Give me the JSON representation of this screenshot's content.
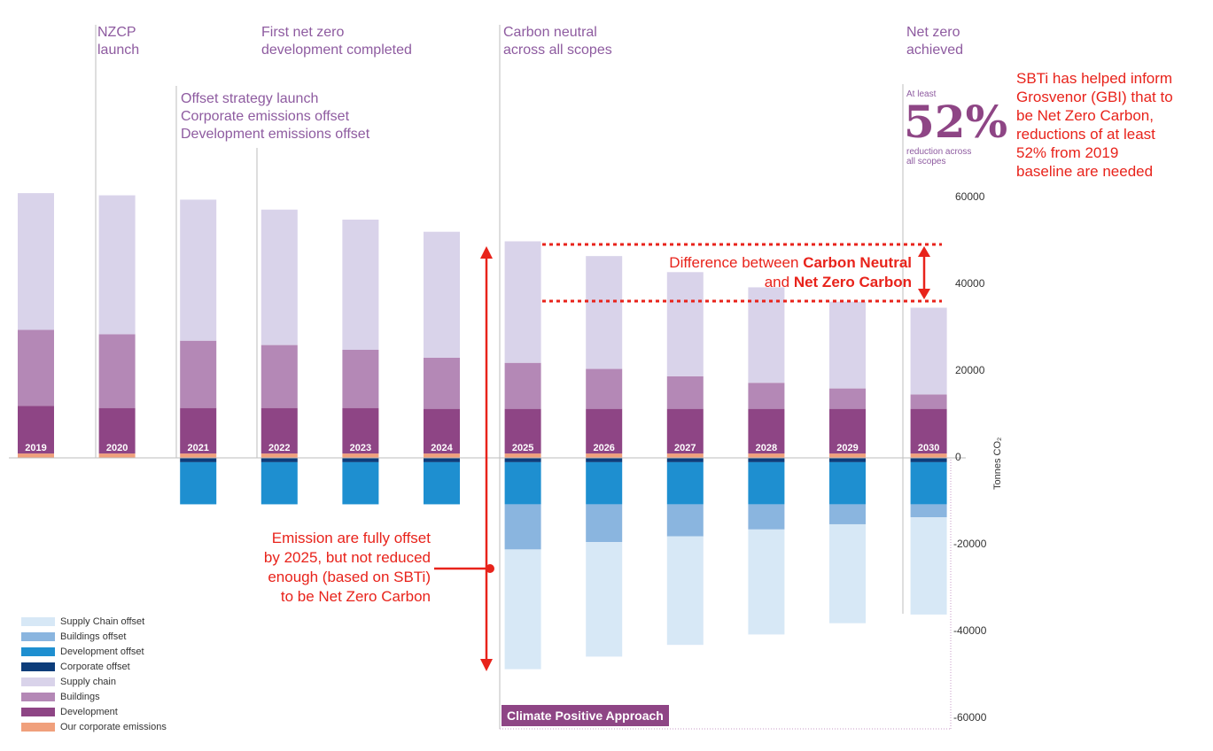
{
  "chart_data": {
    "type": "bar",
    "stacked": true,
    "categories": [
      "2019",
      "2020",
      "2021",
      "2022",
      "2023",
      "2024",
      "2025",
      "2026",
      "2027",
      "2028",
      "2029",
      "2030"
    ],
    "ylabel": "Tonnes CO₂",
    "ylim": [
      -60000,
      60000
    ],
    "yticks": [
      60000,
      40000,
      20000,
      0,
      -20000,
      -40000,
      -60000
    ],
    "series": [
      {
        "name": "Our corporate emissions",
        "color": "#f0a07c",
        "values": [
          1000,
          1000,
          1000,
          1000,
          1000,
          1000,
          1000,
          1000,
          1000,
          1000,
          1000,
          1000
        ]
      },
      {
        "name": "Development",
        "color": "#8e4585",
        "values": [
          11000,
          10500,
          10500,
          10500,
          10500,
          10300,
          10300,
          10300,
          10300,
          10300,
          10300,
          10300
        ]
      },
      {
        "name": "Buildings",
        "color": "#b488b6",
        "values": [
          17500,
          17000,
          15500,
          14500,
          13400,
          11800,
          10600,
          9200,
          7500,
          6000,
          4700,
          3300
        ]
      },
      {
        "name": "Supply chain",
        "color": "#d9d3ea",
        "values": [
          31500,
          32000,
          32500,
          31200,
          30000,
          29000,
          28000,
          26000,
          24000,
          22000,
          20000,
          20000
        ]
      },
      {
        "name": "Corporate offset",
        "color": "#0d3d7a",
        "values": [
          0,
          0,
          -1000,
          -1000,
          -1000,
          -1000,
          -1000,
          -1000,
          -1000,
          -1000,
          -1000,
          -1000
        ]
      },
      {
        "name": "Development offset",
        "color": "#1e8fd0",
        "values": [
          0,
          0,
          -9700,
          -9700,
          -9700,
          -9700,
          -9700,
          -9700,
          -9700,
          -9700,
          -9700,
          -9700
        ]
      },
      {
        "name": "Buildings offset",
        "color": "#8ab5df",
        "values": [
          0,
          0,
          0,
          0,
          0,
          0,
          -10400,
          -8700,
          -7400,
          -5800,
          -4600,
          -3000
        ]
      },
      {
        "name": "Supply Chain offset",
        "color": "#d7e8f6",
        "values": [
          0,
          0,
          0,
          0,
          0,
          0,
          -27600,
          -26400,
          -25000,
          -24200,
          -22800,
          -22400
        ]
      }
    ],
    "legend": [
      {
        "name": "Supply Chain offset",
        "color": "#d7e8f6"
      },
      {
        "name": "Buildings offset",
        "color": "#8ab5df"
      },
      {
        "name": "Development offset",
        "color": "#1e8fd0"
      },
      {
        "name": "Corporate offset",
        "color": "#0d3d7a"
      },
      {
        "name": "Supply chain",
        "color": "#d9d3ea"
      },
      {
        "name": "Buildings",
        "color": "#b488b6"
      },
      {
        "name": "Development",
        "color": "#8e4585"
      },
      {
        "name": "Our corporate emissions",
        "color": "#f0a07c"
      }
    ]
  },
  "milestones": {
    "nzcp": [
      "NZCP",
      "launch"
    ],
    "offset": [
      "Offset strategy launch",
      "Corporate emissions offset",
      "Development emissions offset"
    ],
    "first_net_zero": [
      "First net zero",
      "development completed"
    ],
    "carbon_neutral": [
      "Carbon neutral",
      "across all scopes"
    ],
    "net_zero": [
      "Net zero",
      "achieved"
    ]
  },
  "target": {
    "at_least": "At least",
    "percent": "52%",
    "caption": [
      "reduction across",
      "all scopes"
    ]
  },
  "annotations": {
    "sbti_note": [
      "SBTi has helped inform",
      "Grosvenor (GBI) that to",
      "be Net Zero Carbon,",
      "reductions of at least",
      "52% from 2019",
      "baseline are needed"
    ],
    "diff_prefix": "Difference between ",
    "diff_bold1": "Carbon Neutral",
    "diff_mid": "and ",
    "diff_bold2": "Net Zero Carbon",
    "emission_note": [
      "Emission are fully offset",
      "by 2025, but not reduced",
      "enough (based on SBTi)",
      "to be Net Zero Carbon"
    ],
    "climate_positive": "Climate Positive Approach"
  },
  "colors": {
    "annotation_red": "#e8231b",
    "milestone_purple": "#8e5ba0",
    "brand_purple": "#8e4585"
  }
}
